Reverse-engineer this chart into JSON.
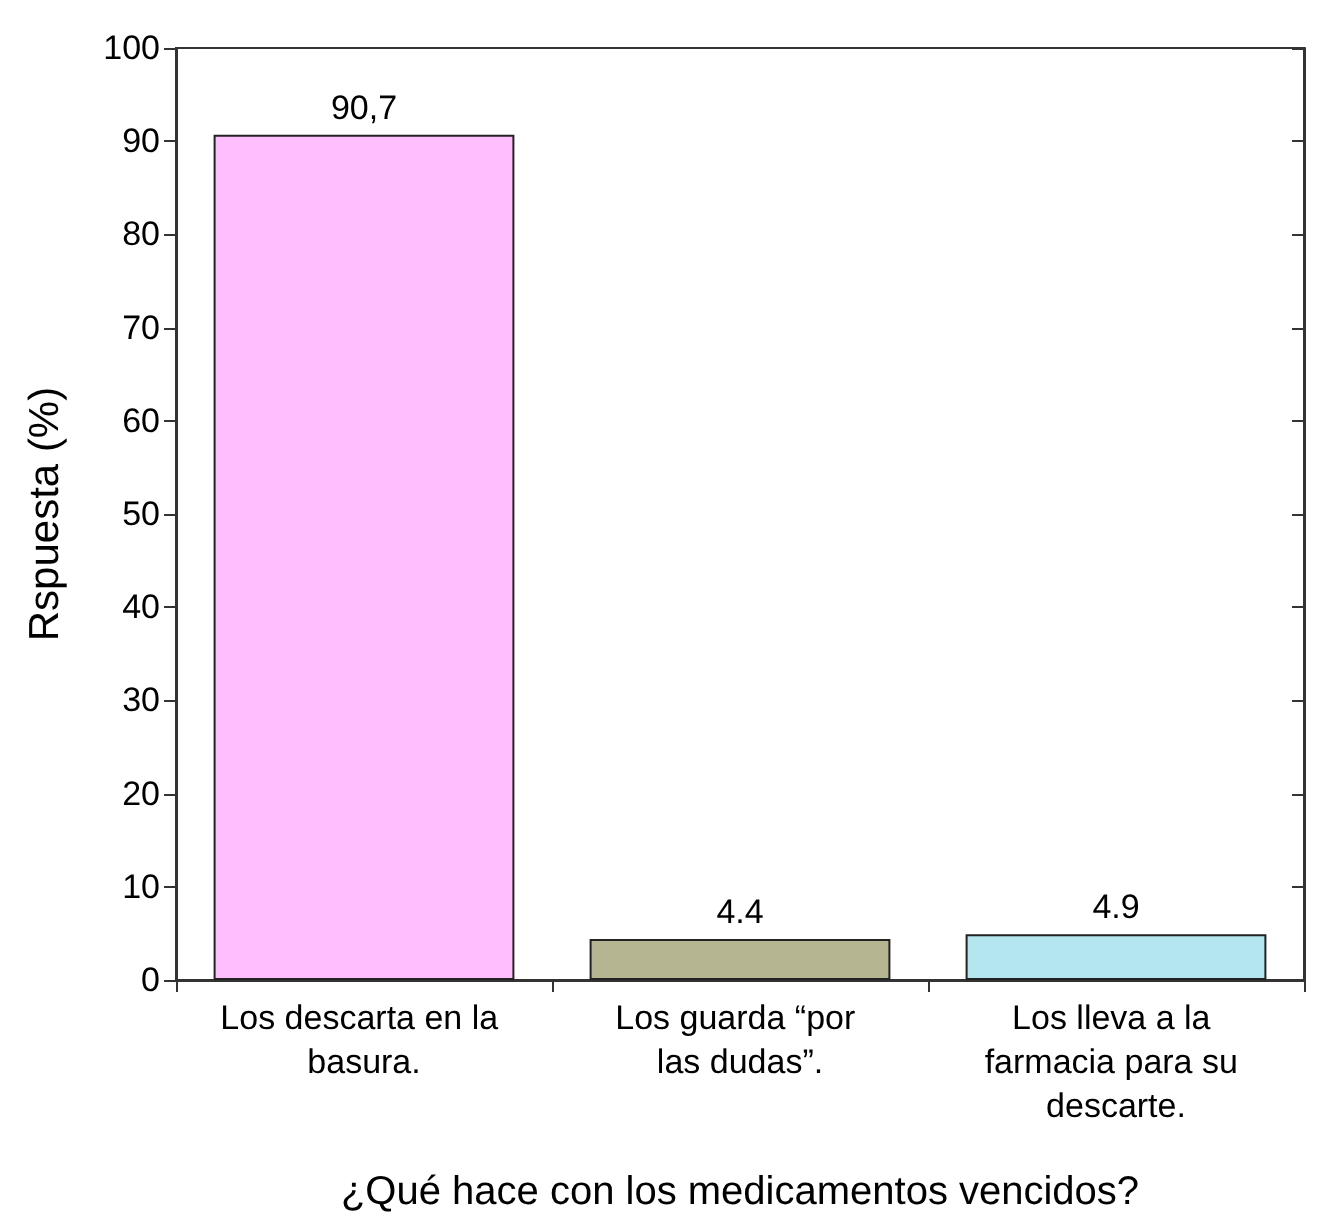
{
  "chart_data": {
    "type": "bar",
    "xlabel": "¿Qué hace con los medicamentos vencidos?",
    "ylabel": "Rspuesta (%)",
    "categories": [
      "Los descarta en la basura.",
      "Los guarda “por las dudas”.",
      "Los lleva a la farmacia para su descarte."
    ],
    "values": [
      90.7,
      4.4,
      4.9
    ],
    "colors": [
      "#ffbfff",
      "#b5b591",
      "#b3e6ee"
    ],
    "value_labels": [
      "90,7",
      "4.4",
      "4.9"
    ],
    "ylim": [
      0,
      100
    ],
    "yticks": [
      0,
      10,
      20,
      30,
      40,
      50,
      60,
      70,
      80,
      90,
      100
    ],
    "grid": false
  }
}
